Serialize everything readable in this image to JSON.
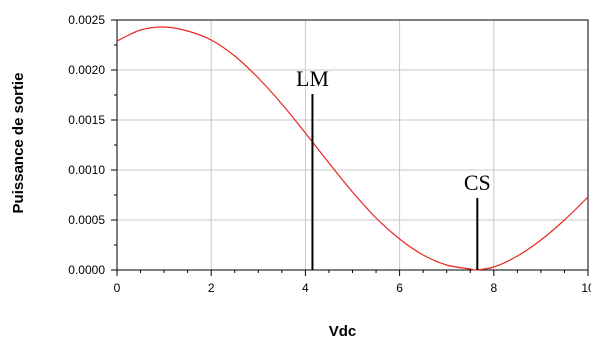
{
  "chart_data": {
    "type": "line",
    "xlabel": "Vdc",
    "ylabel": "Puissance de sortie",
    "xlim": [
      0,
      10
    ],
    "ylim": [
      0,
      0.0025
    ],
    "x_ticks": [
      "0",
      "2",
      "4",
      "6",
      "8",
      "10"
    ],
    "y_ticks": [
      "0.0000",
      "0.0005",
      "0.0010",
      "0.0015",
      "0.0020",
      "0.0025"
    ],
    "grid": true,
    "series": [
      {
        "color": "#e8281e",
        "x": [
          0,
          0.5,
          1.0,
          1.5,
          2.0,
          2.5,
          3.0,
          3.5,
          4.0,
          4.5,
          5.0,
          5.5,
          6.0,
          6.5,
          7.0,
          7.5,
          7.6,
          8.0,
          8.5,
          9.0,
          9.5,
          10.0
        ],
        "y": [
          0.00229,
          0.0024,
          0.00243,
          0.00239,
          0.0023,
          0.00214,
          0.00192,
          0.00166,
          0.00137,
          0.00107,
          0.00078,
          0.00052,
          0.00031,
          0.00015,
          5e-05,
          1e-05,
          0.0,
          3e-05,
          0.00014,
          0.0003,
          0.0005,
          0.00073
        ]
      }
    ],
    "markers": [
      {
        "label": "LM",
        "x": 4.15,
        "y_top": 0.00176
      },
      {
        "label": "CS",
        "x": 7.65,
        "y_top": 0.00072
      }
    ]
  }
}
